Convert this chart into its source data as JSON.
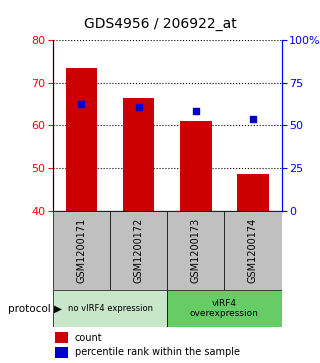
{
  "title": "GDS4956 / 206922_at",
  "samples": [
    "GSM1200171",
    "GSM1200172",
    "GSM1200173",
    "GSM1200174"
  ],
  "bar_values": [
    73.5,
    66.5,
    61.0,
    48.5
  ],
  "bar_base": 40,
  "bar_color": "#cc0000",
  "percentile_values": [
    65.0,
    64.2,
    63.3,
    61.4
  ],
  "percentile_color": "#0000cc",
  "ylim_left": [
    40,
    80
  ],
  "ylim_right": [
    0,
    100
  ],
  "yticks_left": [
    40,
    50,
    60,
    70,
    80
  ],
  "yticks_right": [
    0,
    25,
    50,
    75,
    100
  ],
  "ytick_labels_right": [
    "0",
    "25",
    "50",
    "75",
    "100%"
  ],
  "group1_label": "no vIRF4 expression",
  "group2_label": "vIRF4\noverexpression",
  "group1_color": "#c8e6c9",
  "group2_color": "#66cc66",
  "sample_box_color": "#c0c0c0",
  "protocol_label": "protocol",
  "legend_count_label": "count",
  "legend_percentile_label": "percentile rank within the sample",
  "bg_color": "#ffffff",
  "bar_width": 0.55,
  "title_fontsize": 10,
  "tick_fontsize": 8,
  "label_fontsize": 7
}
